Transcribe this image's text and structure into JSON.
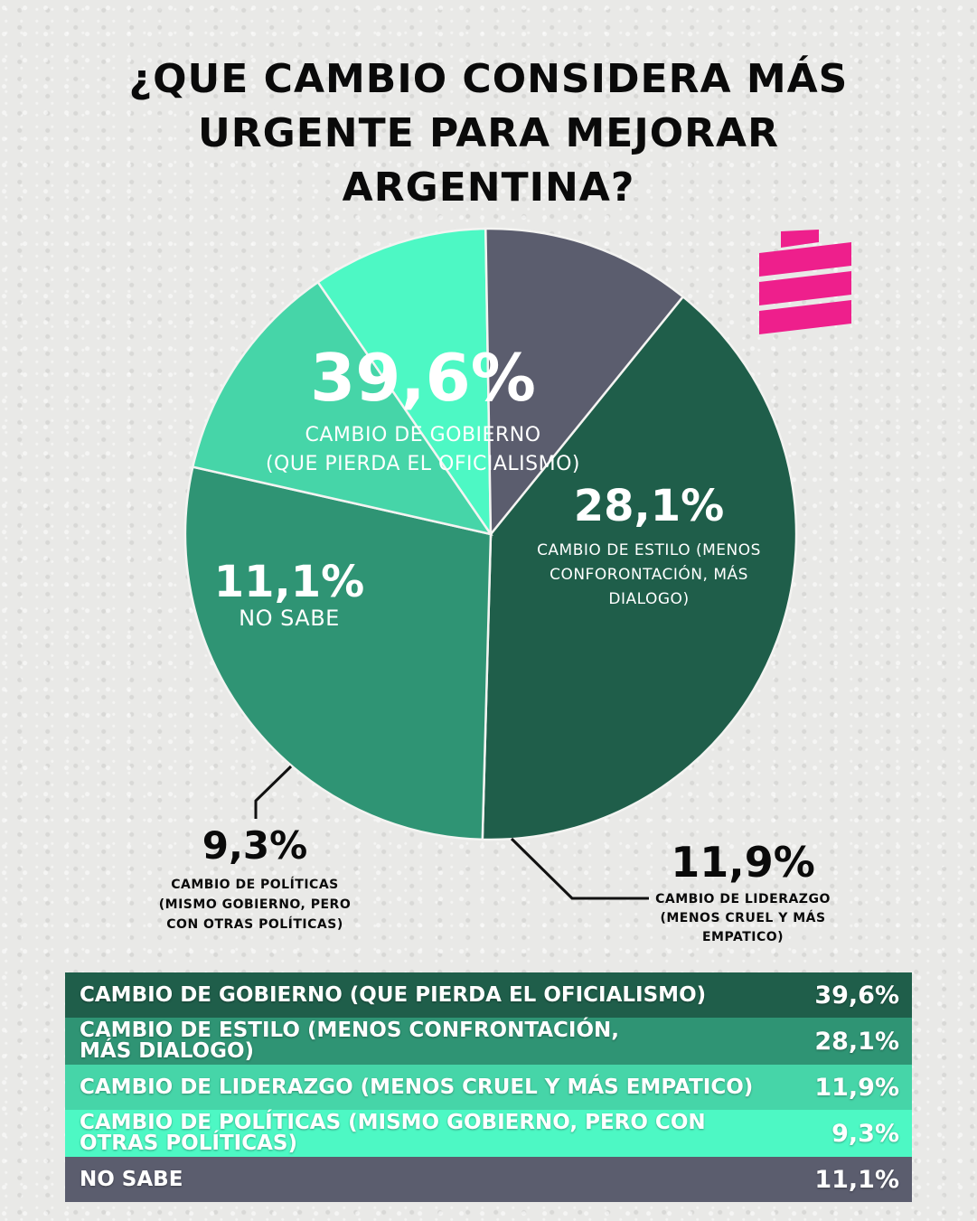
{
  "title_lines": [
    "¿QUE CAMBIO CONSIDERA MÁS",
    "URGENTE PARA MEJORAR",
    "ARGENTINA?"
  ],
  "chart_data": {
    "type": "pie",
    "slices": [
      {
        "value": 39.6,
        "value_label": "39,6%",
        "label_lines": [
          "CAMBIO DE GOBIERNO",
          "(QUE PIERDA EL OFICIALISMO)"
        ],
        "color": "#1f5e4a"
      },
      {
        "value": 28.1,
        "value_label": "28,1%",
        "label_lines": [
          "CAMBIO DE ESTILO (MENOS",
          "CONFORONTACIÓN, MÁS",
          "DIALOGO)"
        ],
        "color": "#2f9474"
      },
      {
        "value": 11.9,
        "value_label": "11,9%",
        "label_lines": [
          "CAMBIO DE LIDERAZGO",
          "(MENOS CRUEL Y MÁS",
          "EMPATICO)"
        ],
        "color": "#46d5a8"
      },
      {
        "value": 9.3,
        "value_label": "9,3%",
        "label_lines": [
          "CAMBIO DE POLÍTICAS",
          "(MISMO GOBIERNO, PERO",
          "CON OTRAS POLÍTICAS)"
        ],
        "color": "#4df8c4"
      },
      {
        "value": 11.1,
        "value_label": "11,1%",
        "label_lines": [
          "NO SABE"
        ],
        "color": "#5b5d6e"
      }
    ]
  },
  "table": {
    "rows": [
      {
        "label_lines": [
          "CAMBIO DE GOBIERNO (QUE PIERDA EL OFICIALISMO)"
        ],
        "value": "39,6%",
        "color": "#1f5e4a"
      },
      {
        "label_lines": [
          "CAMBIO DE ESTILO (MENOS CONFRONTACIÓN,",
          "MÁS DIALOGO)"
        ],
        "value": "28,1%",
        "color": "#2f9474"
      },
      {
        "label_lines": [
          "CAMBIO DE LIDERAZGO (MENOS CRUEL Y MÁS EMPATICO)"
        ],
        "value": "11,9%",
        "color": "#46d5a8"
      },
      {
        "label_lines": [
          "CAMBIO DE POLÍTICAS (MISMO GOBIERNO, PERO CON",
          "OTRAS POLÍTICAS)"
        ],
        "value": "9,3%",
        "color": "#4df8c4"
      },
      {
        "label_lines": [
          "NO SABE"
        ],
        "value": "11,1%",
        "color": "#5b5d6e"
      }
    ]
  },
  "logo": {
    "color": "#ee1f8c",
    "icon": "brand-logo-icon"
  }
}
